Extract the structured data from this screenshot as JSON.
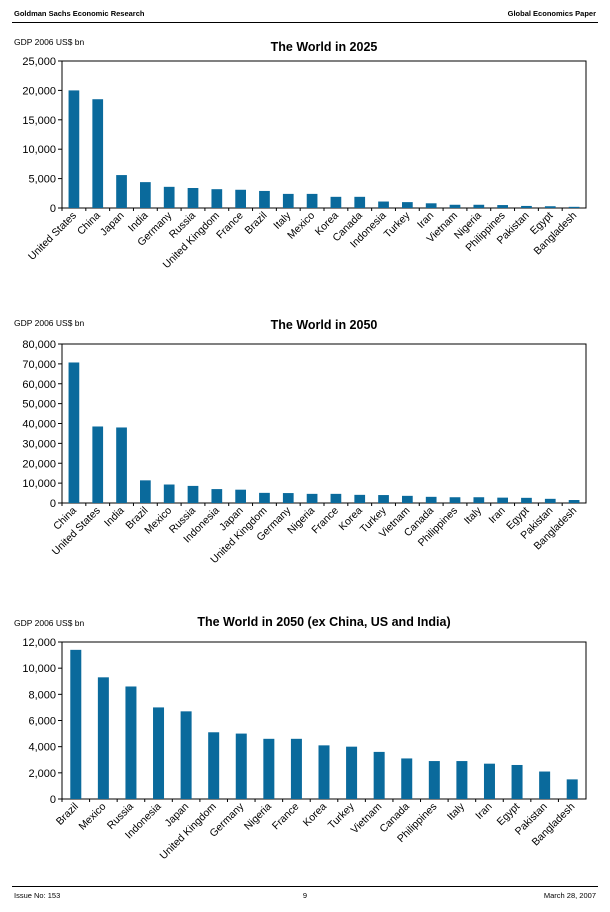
{
  "header": {
    "left": "Goldman Sachs Economic Research",
    "right": "Global Economics Paper"
  },
  "footer": {
    "left": "Issue No: 153",
    "center": "9",
    "right": "March 28, 2007"
  },
  "colors": {
    "bar": "#0a6a9c",
    "axis": "#000000"
  },
  "chart_data": [
    {
      "type": "bar",
      "title": "The World in 2025",
      "unit_label": "GDP 2006 US$ bn",
      "ylim": [
        0,
        25000
      ],
      "yticks": [
        0,
        5000,
        10000,
        15000,
        20000,
        25000
      ],
      "ytick_labels": [
        "0",
        "5,000",
        "10,000",
        "15,000",
        "20,000",
        "25,000"
      ],
      "grid": false,
      "categories": [
        "United States",
        "China",
        "Japan",
        "India",
        "Germany",
        "Russia",
        "United Kingdom",
        "France",
        "Brazil",
        "Italy",
        "Mexico",
        "Korea",
        "Canada",
        "Indonesia",
        "Turkey",
        "Iran",
        "Vietnam",
        "Nigeria",
        "Philippines",
        "Pakistan",
        "Egypt",
        "Bangladesh"
      ],
      "values": [
        20000,
        18500,
        5600,
        4400,
        3600,
        3400,
        3200,
        3100,
        2900,
        2400,
        2400,
        1900,
        1900,
        1100,
        1000,
        800,
        550,
        550,
        500,
        350,
        300,
        200
      ]
    },
    {
      "type": "bar",
      "title": "The World in 2050",
      "unit_label": "GDP 2006 US$ bn",
      "ylim": [
        0,
        80000
      ],
      "yticks": [
        0,
        10000,
        20000,
        30000,
        40000,
        50000,
        60000,
        70000,
        80000
      ],
      "ytick_labels": [
        "0",
        "10,000",
        "20,000",
        "30,000",
        "40,000",
        "50,000",
        "60,000",
        "70,000",
        "80,000"
      ],
      "grid": false,
      "categories": [
        "China",
        "United States",
        "India",
        "Brazil",
        "Mexico",
        "Russia",
        "Indonesia",
        "Japan",
        "United Kingdom",
        "Germany",
        "Nigeria",
        "France",
        "Korea",
        "Turkey",
        "Vietnam",
        "Canada",
        "Philippines",
        "Italy",
        "Iran",
        "Egypt",
        "Pakistan",
        "Bangladesh"
      ],
      "values": [
        70700,
        38500,
        38000,
        11400,
        9300,
        8600,
        7000,
        6700,
        5100,
        5000,
        4600,
        4600,
        4100,
        4000,
        3600,
        3100,
        2900,
        2900,
        2700,
        2600,
        2100,
        1500
      ]
    },
    {
      "type": "bar",
      "title": "The World in 2050 (ex China, US and India)",
      "unit_label": "GDP 2006 US$ bn",
      "ylim": [
        0,
        12000
      ],
      "yticks": [
        0,
        2000,
        4000,
        6000,
        8000,
        10000,
        12000
      ],
      "ytick_labels": [
        "0",
        "2,000",
        "4,000",
        "6,000",
        "8,000",
        "10,000",
        "12,000"
      ],
      "grid": false,
      "categories": [
        "Brazil",
        "Mexico",
        "Russia",
        "Indonesia",
        "Japan",
        "United Kingdom",
        "Germany",
        "Nigeria",
        "France",
        "Korea",
        "Turkey",
        "Vietnam",
        "Canada",
        "Philippines",
        "Italy",
        "Iran",
        "Egypt",
        "Pakistan",
        "Bangladesh"
      ],
      "values": [
        11400,
        9300,
        8600,
        7000,
        6700,
        5100,
        5000,
        4600,
        4600,
        4100,
        4000,
        3600,
        3100,
        2900,
        2900,
        2700,
        2600,
        2100,
        1500
      ]
    }
  ]
}
